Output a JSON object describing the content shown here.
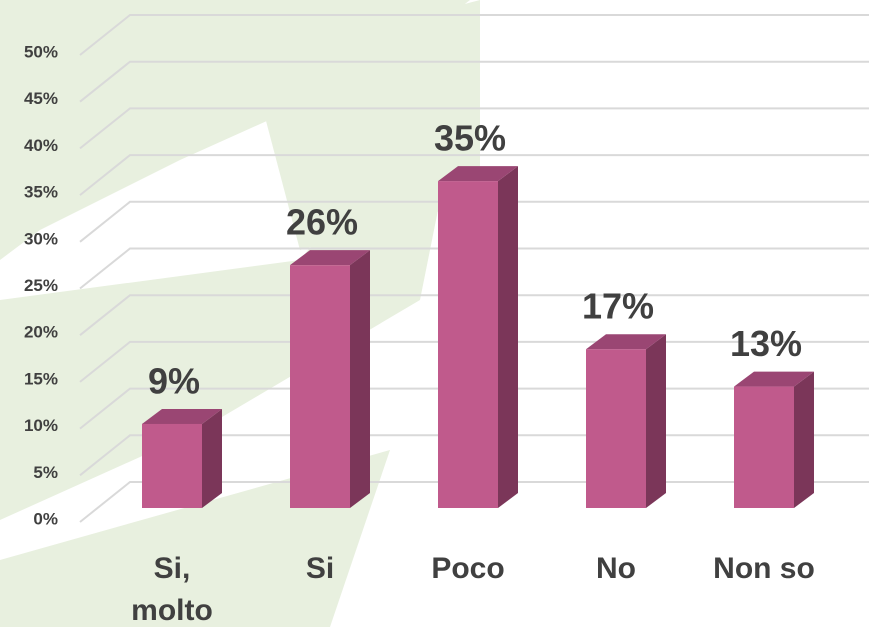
{
  "chart_data": {
    "type": "bar3d",
    "categories": [
      "Si, molto",
      "Si",
      "Poco",
      "No",
      "Non so"
    ],
    "values": [
      9,
      26,
      35,
      17,
      13
    ],
    "value_labels": [
      "9%",
      "26%",
      "35%",
      "17%",
      "13%"
    ],
    "color": "#c05a8c",
    "ylim": [
      0,
      50
    ],
    "yticks": [
      {
        "value": 0,
        "label": "0%"
      },
      {
        "value": 5,
        "label": "5%"
      },
      {
        "value": 10,
        "label": "10%"
      },
      {
        "value": 15,
        "label": "15%"
      },
      {
        "value": 20,
        "label": "20%"
      },
      {
        "value": 25,
        "label": "25%"
      },
      {
        "value": 30,
        "label": "30%"
      },
      {
        "value": 35,
        "label": "35%"
      },
      {
        "value": 40,
        "label": "40%"
      },
      {
        "value": 45,
        "label": "45%"
      },
      {
        "value": 50,
        "label": "50%"
      }
    ],
    "grid": true
  }
}
